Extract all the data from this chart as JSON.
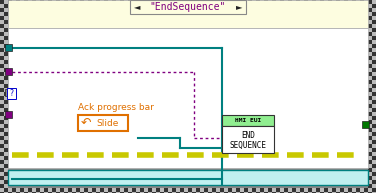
{
  "title_text": "\"EndSequence\"",
  "tab_bg": "#fdfde0",
  "tab_text_color": "#800080",
  "top_bg": "#fdfde0",
  "inner_bg": "#ffffff",
  "border_dark": "#444444",
  "teal_color": "#008080",
  "purple_color": "#800080",
  "yellow_color": "#c8c800",
  "cyan_bottom": "#c0f0f0",
  "node_header_bg": "#90ee90",
  "node_header_text": "HMI EUI",
  "node_body_text1": "END",
  "node_body_text2": "SEQUENCE",
  "slide_label": "Ack progress bar",
  "slide_text": "Slide",
  "slide_border": "#e07000",
  "slide_text_color": "#e07000",
  "connector_teal": "#008080",
  "connector_purple": "#800080",
  "connector_gray": "#888888",
  "connector_green": "#007700"
}
